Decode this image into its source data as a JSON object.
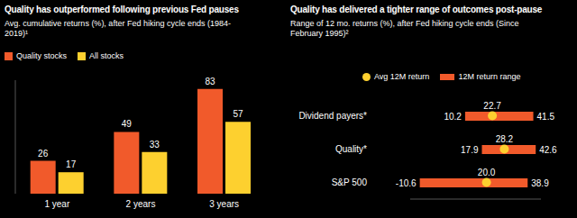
{
  "chart_data": [
    {
      "type": "bar",
      "title": "Quality has outperformed following previous Fed pauses",
      "subtitle": "Avg. cumulative returns (%), after Fed hiking cycle ends (1984-2019)¹",
      "categories": [
        "1 year",
        "2 years",
        "3 years"
      ],
      "series": [
        {
          "name": "Quality stocks",
          "color": "#f15a2b",
          "values": [
            26,
            49,
            83
          ]
        },
        {
          "name": "All stocks",
          "color": "#fdd02f",
          "values": [
            17,
            33,
            57
          ]
        }
      ],
      "ylim": [
        0,
        90
      ],
      "data_labels": true,
      "tick_labels": "x",
      "legend": "top left"
    },
    {
      "type": "range",
      "title": "Quality has delivered a tighter range of outcomes post-pause",
      "subtitle": "Range of 12 mo. returns (%), after Fed hiking cycle ends (Since February 1995)²",
      "orientation": "horizontal",
      "categories": [
        "Dividend payers*",
        "Quality*",
        "S&P 500"
      ],
      "series": [
        {
          "name": "Avg 12M return",
          "type": "scatter",
          "marker": "circle",
          "color": "#fdd02f",
          "values": [
            22.7,
            28.2,
            20.0
          ],
          "value_labels": [
            "22.7",
            "28.2",
            "20.0"
          ]
        },
        {
          "name": "12M return range",
          "type": "range_bar",
          "color": "#f15a2b",
          "values": [
            [
              10.2,
              41.5
            ],
            [
              17.9,
              42.6
            ],
            [
              -10.6,
              38.9
            ]
          ]
        }
      ],
      "xlim": [
        -15,
        45
      ],
      "data_labels": true,
      "tick_labels": "y",
      "legend": "top left"
    }
  ]
}
